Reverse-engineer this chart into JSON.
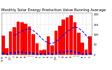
{
  "title": "Monthly Solar Energy Production Value Running Average",
  "bar_values": [
    95,
    30,
    115,
    135,
    165,
    160,
    155,
    140,
    100,
    55,
    20,
    25,
    90,
    45,
    120,
    145,
    175,
    185,
    195,
    160,
    110,
    60,
    25,
    90
  ],
  "avg_values": [
    null,
    null,
    null,
    95,
    107,
    118,
    125,
    130,
    120,
    105,
    85,
    68,
    58,
    55,
    65,
    80,
    100,
    115,
    128,
    140,
    132,
    118,
    95,
    75
  ],
  "dot_values": [
    8,
    3,
    10,
    12,
    14,
    13,
    12,
    11,
    8,
    5,
    2,
    2,
    8,
    4,
    10,
    13,
    15,
    16,
    17,
    14,
    9,
    5,
    2,
    8
  ],
  "bar_color": "#FF0000",
  "avg_color": "#0000FF",
  "dot_color": "#0000FF",
  "background_color": "#FFFFFF",
  "ylim": [
    0,
    210
  ],
  "yticks": [
    0,
    50,
    100,
    150,
    200
  ],
  "ytick_labels": [
    "0",
    "50",
    "100",
    "150",
    "200"
  ],
  "x_labels": [
    "N '06",
    "D",
    "J '07",
    "F",
    "M",
    "A",
    "M",
    "J",
    "J",
    "A",
    "S",
    "O",
    "N",
    "D",
    "J '08",
    "F",
    "M",
    "A",
    "M",
    "J",
    "J",
    "A",
    "S",
    "O"
  ],
  "grid_color": "#AAAAAA",
  "title_fontsize": 3.8,
  "figsize": [
    1.6,
    1.0
  ],
  "dpi": 100
}
